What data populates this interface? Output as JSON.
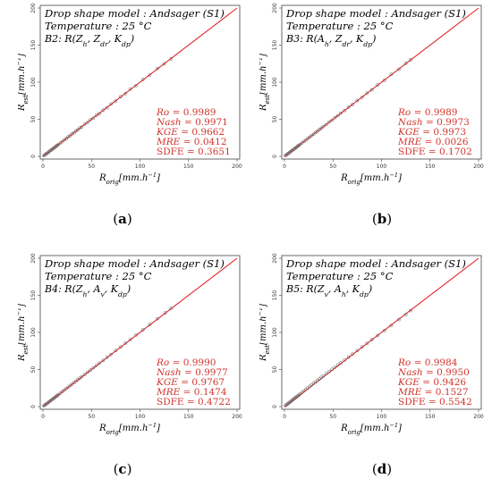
{
  "panels": [
    {
      "header_line1": "Drop shape model : Andsager (S1)",
      "header_line2": "Temperature : 25 °C",
      "combo_prefix": "B2: ",
      "combo_expr": "R(Zh, Zdr, Kdp)",
      "stats": [
        "Ro = 0.9989",
        "Nash = 0.9971",
        "KGE = 0.9662",
        "MRE = 0.0412",
        "SDFE = 0.3651"
      ],
      "caption": "(a)"
    },
    {
      "header_line1": "Drop shape model : Andsager (S1)",
      "header_line2": "Temperature : 25 °C",
      "combo_prefix": "B3: ",
      "combo_expr": "R(Ah, Zdr, Kdp)",
      "stats": [
        "Ro = 0.9989",
        "Nash = 0.9973",
        "KGE = 0.9973",
        "MRE = 0.0026",
        "SDFE = 0.1702"
      ],
      "caption": "(b)"
    },
    {
      "header_line1": "Drop shape model : Andsager (S1)",
      "header_line2": "Temperature : 25 °C",
      "combo_prefix": "B4: ",
      "combo_expr": "R(Zh, Av, Kdp)",
      "stats": [
        "Ro = 0.9990",
        "Nash = 0.9977",
        "KGE = 0.9767",
        "MRE = 0.1474",
        "SDFE = 0.4722"
      ],
      "caption": "(c)"
    },
    {
      "header_line1": "Drop shape model : Andsager (S1)",
      "header_line2": "Temperature : 25 °C",
      "combo_prefix": "B5: ",
      "combo_expr": "R(Zv, Ah, Kdp)",
      "stats": [
        "Ro = 0.9984",
        "Nash = 0.9950",
        "KGE = 0.9426",
        "MRE = 0.1527",
        "SDFE = 0.5542"
      ],
      "caption": "(d)"
    }
  ],
  "chart_data": [
    {
      "type": "scatter",
      "xlabel": "R_orig [mm.h^-1]",
      "ylabel": "R_est [mm.h^-1]",
      "xlim": [
        0,
        200
      ],
      "ylim": [
        0,
        200
      ],
      "xticks": [
        "0",
        "50",
        "100",
        "150",
        "200"
      ],
      "yticks": [
        "0",
        "50",
        "100",
        "150",
        "200"
      ],
      "reference_line": "1:1",
      "colors": {
        "points": "#555555",
        "line": "#e0242b",
        "stats": "#d0342c"
      },
      "points": [
        [
          1,
          1
        ],
        [
          2,
          2.1
        ],
        [
          3,
          2.9
        ],
        [
          4,
          4.2
        ],
        [
          5,
          4.8
        ],
        [
          6,
          6.1
        ],
        [
          7,
          7.0
        ],
        [
          8,
          8.2
        ],
        [
          9,
          8.8
        ],
        [
          10,
          10.3
        ],
        [
          11,
          10.9
        ],
        [
          12,
          12.2
        ],
        [
          13,
          12.8
        ],
        [
          14,
          14.3
        ],
        [
          15,
          14.9
        ],
        [
          16,
          16.1
        ],
        [
          18,
          18.3
        ],
        [
          20,
          19.8
        ],
        [
          22,
          22.4
        ],
        [
          24,
          23.7
        ],
        [
          26,
          26.3
        ],
        [
          28,
          27.6
        ],
        [
          30,
          30.4
        ],
        [
          32,
          31.6
        ],
        [
          34,
          34.5
        ],
        [
          36,
          35.7
        ],
        [
          38,
          38.4
        ],
        [
          40,
          39.6
        ],
        [
          43,
          43.5
        ],
        [
          46,
          45.7
        ],
        [
          49,
          49.6
        ],
        [
          52,
          51.6
        ],
        [
          55,
          55.4
        ],
        [
          58,
          57.6
        ],
        [
          62,
          62.5
        ],
        [
          66,
          65.5
        ],
        [
          70,
          70.6
        ],
        [
          75,
          74.4
        ],
        [
          80,
          80.5
        ],
        [
          85,
          84.6
        ],
        [
          90,
          90.8
        ],
        [
          96,
          95.3
        ],
        [
          103,
          103.8
        ],
        [
          110,
          109.4
        ],
        [
          118,
          118.6
        ],
        [
          125,
          124.8
        ],
        [
          132,
          131.5
        ]
      ]
    },
    {
      "type": "scatter",
      "xlabel": "R_orig [mm.h^-1]",
      "ylabel": "R_est [mm.h^-1]",
      "xlim": [
        0,
        200
      ],
      "ylim": [
        0,
        200
      ],
      "xticks": [
        "0",
        "50",
        "100",
        "150",
        "200"
      ],
      "yticks": [
        "0",
        "50",
        "100",
        "150",
        "200"
      ],
      "reference_line": "1:1",
      "colors": {
        "points": "#555555",
        "line": "#e0242b",
        "stats": "#d0342c"
      },
      "points": [
        [
          1,
          1.1
        ],
        [
          2,
          2.0
        ],
        [
          3,
          3.1
        ],
        [
          4,
          3.9
        ],
        [
          5,
          5.1
        ],
        [
          6,
          6.0
        ],
        [
          7,
          7.1
        ],
        [
          8,
          7.9
        ],
        [
          9,
          9.1
        ],
        [
          10,
          10.0
        ],
        [
          11,
          11.1
        ],
        [
          12,
          11.9
        ],
        [
          13,
          13.1
        ],
        [
          14,
          14.0
        ],
        [
          15,
          15.1
        ],
        [
          16,
          15.9
        ],
        [
          18,
          18.2
        ],
        [
          20,
          20.1
        ],
        [
          22,
          21.8
        ],
        [
          24,
          24.2
        ],
        [
          26,
          25.9
        ],
        [
          28,
          28.2
        ],
        [
          30,
          29.8
        ],
        [
          32,
          32.3
        ],
        [
          34,
          33.8
        ],
        [
          36,
          36.2
        ],
        [
          38,
          37.9
        ],
        [
          40,
          40.3
        ],
        [
          43,
          42.8
        ],
        [
          46,
          46.3
        ],
        [
          49,
          48.8
        ],
        [
          52,
          52.3
        ],
        [
          55,
          54.8
        ],
        [
          58,
          58.3
        ],
        [
          62,
          61.8
        ],
        [
          66,
          66.3
        ],
        [
          70,
          69.8
        ],
        [
          75,
          75.4
        ],
        [
          80,
          79.7
        ],
        [
          85,
          85.4
        ],
        [
          90,
          89.6
        ],
        [
          96,
          96.4
        ],
        [
          103,
          102.6
        ],
        [
          110,
          110.5
        ],
        [
          118,
          117.5
        ],
        [
          125,
          125.6
        ],
        [
          130,
          130.3
        ]
      ]
    },
    {
      "type": "scatter",
      "xlabel": "R_orig [mm.h^-1]",
      "ylabel": "R_est [mm.h^-1]",
      "xlim": [
        0,
        200
      ],
      "ylim": [
        0,
        200
      ],
      "xticks": [
        "0",
        "50",
        "100",
        "150",
        "200"
      ],
      "yticks": [
        "0",
        "50",
        "100",
        "150",
        "200"
      ],
      "reference_line": "1:1",
      "colors": {
        "points": "#555555",
        "line": "#e0242b",
        "stats": "#d0342c"
      },
      "points": [
        [
          1,
          1.0
        ],
        [
          2,
          2.2
        ],
        [
          3,
          3.0
        ],
        [
          4,
          4.1
        ],
        [
          5,
          5.0
        ],
        [
          6,
          6.2
        ],
        [
          7,
          7.0
        ],
        [
          8,
          8.1
        ],
        [
          9,
          9.0
        ],
        [
          10,
          10.2
        ],
        [
          11,
          11.0
        ],
        [
          12,
          12.1
        ],
        [
          13,
          13.0
        ],
        [
          14,
          14.2
        ],
        [
          15,
          15.0
        ],
        [
          16,
          16.1
        ],
        [
          18,
          18.1
        ],
        [
          20,
          20.2
        ],
        [
          22,
          22.1
        ],
        [
          24,
          24.3
        ],
        [
          26,
          26.1
        ],
        [
          28,
          28.3
        ],
        [
          30,
          30.2
        ],
        [
          32,
          32.4
        ],
        [
          34,
          34.2
        ],
        [
          36,
          36.4
        ],
        [
          38,
          38.2
        ],
        [
          40,
          40.4
        ],
        [
          43,
          43.3
        ],
        [
          46,
          46.4
        ],
        [
          49,
          49.3
        ],
        [
          52,
          52.4
        ],
        [
          55,
          55.3
        ],
        [
          58,
          58.5
        ],
        [
          62,
          62.3
        ],
        [
          66,
          66.5
        ],
        [
          70,
          70.3
        ],
        [
          75,
          75.6
        ],
        [
          80,
          80.3
        ],
        [
          85,
          85.6
        ],
        [
          90,
          90.4
        ],
        [
          96,
          96.6
        ],
        [
          103,
          103.5
        ],
        [
          110,
          110.6
        ],
        [
          118,
          118.5
        ],
        [
          126,
          126.4
        ],
        [
          132,
          132.3
        ]
      ]
    },
    {
      "type": "scatter",
      "xlabel": "R_orig [mm.h^-1]",
      "ylabel": "R_est [mm.h^-1]",
      "xlim": [
        0,
        200
      ],
      "ylim": [
        0,
        200
      ],
      "xticks": [
        "0",
        "50",
        "100",
        "150",
        "200"
      ],
      "yticks": [
        "0",
        "50",
        "100",
        "150",
        "200"
      ],
      "reference_line": "1:1",
      "colors": {
        "points": "#555555",
        "line": "#e0242b",
        "stats": "#d0342c"
      },
      "points": [
        [
          1,
          1.2
        ],
        [
          2,
          2.3
        ],
        [
          3,
          3.3
        ],
        [
          4,
          4.4
        ],
        [
          5,
          5.4
        ],
        [
          6,
          6.5
        ],
        [
          7,
          7.5
        ],
        [
          8,
          8.6
        ],
        [
          9,
          9.6
        ],
        [
          10,
          10.6
        ],
        [
          11,
          11.7
        ],
        [
          12,
          12.6
        ],
        [
          13,
          13.7
        ],
        [
          14,
          14.6
        ],
        [
          15,
          15.8
        ],
        [
          16,
          16.7
        ],
        [
          18,
          18.9
        ],
        [
          20,
          21.0
        ],
        [
          22,
          23.2
        ],
        [
          24,
          25.1
        ],
        [
          26,
          27.3
        ],
        [
          28,
          29.2
        ],
        [
          30,
          31.4
        ],
        [
          32,
          33.2
        ],
        [
          34,
          35.4
        ],
        [
          36,
          37.2
        ],
        [
          38,
          39.4
        ],
        [
          40,
          41.2
        ],
        [
          43,
          44.4
        ],
        [
          46,
          47.2
        ],
        [
          49,
          50.3
        ],
        [
          52,
          53.1
        ],
        [
          55,
          56.2
        ],
        [
          58,
          59.0
        ],
        [
          62,
          63.0
        ],
        [
          66,
          66.8
        ],
        [
          70,
          70.8
        ],
        [
          75,
          75.5
        ],
        [
          80,
          80.6
        ],
        [
          85,
          85.2
        ],
        [
          90,
          90.3
        ],
        [
          96,
          95.8
        ],
        [
          103,
          102.6
        ],
        [
          110,
          109.2
        ],
        [
          118,
          117.4
        ],
        [
          125,
          124.0
        ],
        [
          130,
          129.5
        ]
      ]
    }
  ]
}
